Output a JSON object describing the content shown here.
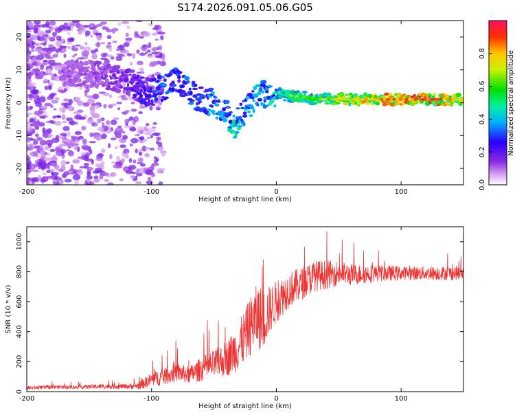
{
  "title": "S174.2026.091.05.06.G05",
  "chart_data": [
    {
      "type": "heatmap",
      "xlabel": "Height of straight line (km)",
      "ylabel": "Frequency (Hz)",
      "xlim": [
        -200,
        150
      ],
      "ylim": [
        -25,
        25
      ],
      "xticks": [
        -200,
        -100,
        0,
        100
      ],
      "yticks": [
        -20,
        -10,
        0,
        10,
        20
      ],
      "ridge_x": [
        -150,
        -120,
        -110,
        -100,
        -90,
        -80,
        -70,
        -60,
        -50,
        -40,
        -33,
        -25,
        -15,
        -5,
        0,
        10,
        20,
        30,
        40,
        60,
        80,
        100,
        120,
        150
      ],
      "ridge_y": [
        9,
        7,
        4,
        3,
        5,
        7,
        3,
        1,
        0,
        -3,
        -7,
        -2,
        2,
        3,
        3,
        2,
        2,
        1,
        1,
        1,
        1,
        1,
        1,
        1
      ],
      "ridge_amplitude": [
        0.12,
        0.18,
        0.25,
        0.3,
        0.35,
        0.3,
        0.35,
        0.3,
        0.4,
        0.35,
        0.5,
        0.4,
        0.4,
        0.45,
        0.5,
        0.55,
        0.6,
        0.6,
        0.65,
        0.75,
        0.8,
        0.85,
        0.95,
        0.7
      ],
      "colorbar": {
        "label": "Normalized spectral amplitude",
        "range": [
          0,
          1
        ],
        "ticks": [
          "0.0",
          "0.2",
          "0.4",
          "0.6",
          "0.8"
        ]
      }
    },
    {
      "type": "line",
      "series_name": "SNR",
      "color": "#ee3333",
      "xlabel": "Height of straight line (km)",
      "ylabel": "SNR (10 * v/v)",
      "xlim": [
        -200,
        150
      ],
      "ylim": [
        0,
        1100
      ],
      "xticks": [
        -200,
        -100,
        0,
        100
      ],
      "yticks": [
        0,
        200,
        400,
        600,
        800,
        1000
      ],
      "x": [
        -200,
        -180,
        -160,
        -140,
        -120,
        -110,
        -100,
        -90,
        -80,
        -70,
        -60,
        -50,
        -40,
        -30,
        -20,
        -15,
        -10,
        -5,
        0,
        10,
        20,
        30,
        40,
        50,
        60,
        80,
        100,
        120,
        150
      ],
      "y": [
        25,
        30,
        30,
        35,
        35,
        40,
        80,
        100,
        130,
        110,
        150,
        180,
        220,
        300,
        450,
        500,
        480,
        550,
        600,
        680,
        720,
        770,
        780,
        790,
        780,
        790,
        790,
        790,
        790
      ],
      "spread": [
        15,
        15,
        15,
        20,
        20,
        30,
        60,
        70,
        80,
        70,
        100,
        120,
        150,
        200,
        250,
        280,
        250,
        200,
        180,
        150,
        140,
        130,
        120,
        100,
        90,
        70,
        60,
        55,
        60
      ]
    }
  ]
}
